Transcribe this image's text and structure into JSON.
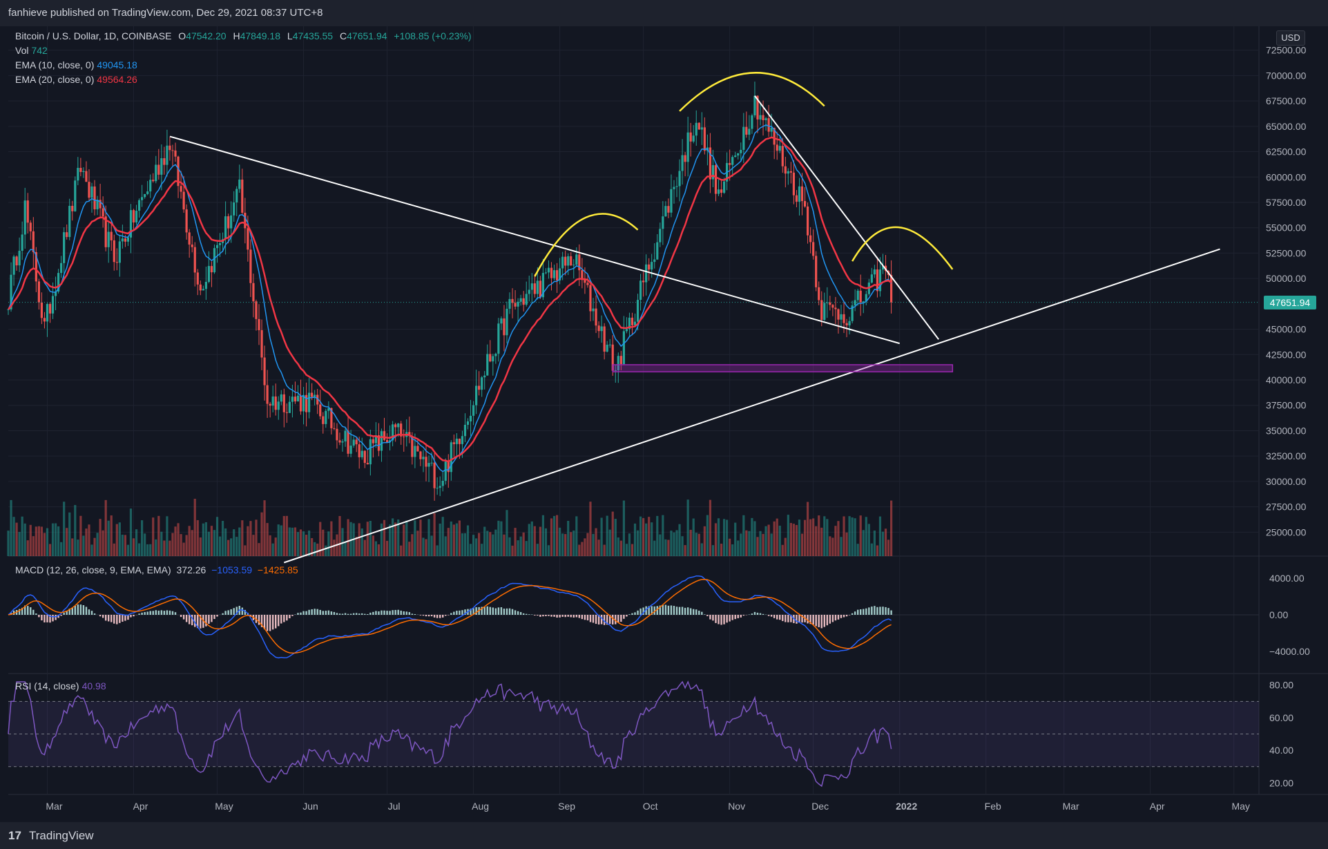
{
  "header": {
    "publisher_line": "fanhieve published on TradingView.com, Dec 29, 2021 08:37 UTC+8"
  },
  "footer": {
    "brand": "TradingView",
    "logo_glyph": "17"
  },
  "legend": {
    "symbol": "Bitcoin / U.S. Dollar, 1D, COINBASE",
    "ohlc": {
      "O": "47542.20",
      "H": "47849.18",
      "L": "47435.55",
      "C": "47651.94",
      "change": "+108.85 (+0.23%)"
    },
    "labels": {
      "O": "O",
      "H": "H",
      "L": "L",
      "C": "C"
    },
    "vol": {
      "label": "Vol",
      "value": "742"
    },
    "ema10": {
      "label": "EMA (10, close, 0)",
      "value": "49045.18"
    },
    "ema20": {
      "label": "EMA (20, close, 0)",
      "value": "49564.26"
    },
    "macd": {
      "label": "MACD (12, 26, close, 9, EMA, EMA)",
      "hist": "372.26",
      "macd": "−1053.59",
      "signal": "−1425.85"
    },
    "rsi": {
      "label": "RSI (14, close)",
      "value": "40.98"
    }
  },
  "price_axis": {
    "currency": "USD",
    "last_price": "47651.94",
    "ticks": [
      "72500.00",
      "70000.00",
      "67500.00",
      "65000.00",
      "62500.00",
      "60000.00",
      "57500.00",
      "55000.00",
      "52500.00",
      "50000.00",
      "45000.00",
      "42500.00",
      "40000.00",
      "37500.00",
      "35000.00",
      "32500.00",
      "30000.00",
      "27500.00",
      "25000.00"
    ]
  },
  "macd_axis": {
    "ticks": [
      "4000.00",
      "0.00",
      "−4000.00"
    ]
  },
  "rsi_axis": {
    "ticks": [
      "80.00",
      "60.00",
      "40.00",
      "20.00"
    ]
  },
  "time_axis": {
    "ticks": [
      "Mar",
      "Apr",
      "May",
      "Jun",
      "Jul",
      "Aug",
      "Sep",
      "Oct",
      "Nov",
      "Dec",
      "2022",
      "Feb",
      "Mar",
      "Apr",
      "May"
    ]
  },
  "colors": {
    "up": "#26a69a",
    "down": "#ef5350",
    "ema10": "#2196f3",
    "ema20": "#f23645",
    "macd": "#2962ff",
    "signal": "#ff6d00",
    "rsi": "#7e57c2",
    "trendline": "#ffffff",
    "arc": "#ffeb3b",
    "zone": "#9c27b0"
  },
  "chart_data": {
    "type": "candlestick",
    "title": "Bitcoin / U.S. Dollar, 1D, COINBASE",
    "price_range": [
      24000,
      73500
    ],
    "last_close": 47651.94,
    "approx_close_path": [
      [
        "2021-02-15",
        48000
      ],
      [
        "2021-02-21",
        57000
      ],
      [
        "2021-02-28",
        45000
      ],
      [
        "2021-03-13",
        61000
      ],
      [
        "2021-03-25",
        52000
      ],
      [
        "2021-04-14",
        63500
      ],
      [
        "2021-04-25",
        49000
      ],
      [
        "2021-05-09",
        58500
      ],
      [
        "2021-05-19",
        38000
      ],
      [
        "2021-06-03",
        38000
      ],
      [
        "2021-06-22",
        32500
      ],
      [
        "2021-07-04",
        35000
      ],
      [
        "2021-07-20",
        30000
      ],
      [
        "2021-08-14",
        47000
      ],
      [
        "2021-09-06",
        52000
      ],
      [
        "2021-09-21",
        41000
      ],
      [
        "2021-10-20",
        66000
      ],
      [
        "2021-10-28",
        58000
      ],
      [
        "2021-11-10",
        67500
      ],
      [
        "2021-11-28",
        57000
      ],
      [
        "2021-12-04",
        47000
      ],
      [
        "2021-12-14",
        46500
      ],
      [
        "2021-12-27",
        51000
      ],
      [
        "2021-12-29",
        47651.94
      ]
    ],
    "indicators": {
      "ema10_last": 49045.18,
      "ema20_last": 49564.26,
      "macd_range": [
        -5500,
        5500
      ],
      "rsi_range": [
        18,
        82
      ],
      "rsi_band": [
        30,
        70
      ],
      "rsi_last": 40.98
    },
    "annotations": {
      "trendlines": [
        {
          "from": [
            "2021-04-14",
            64000
          ],
          "to": [
            "2022-01-01",
            43600
          ]
        },
        {
          "from": [
            "2021-05-25",
            22000
          ],
          "to": [
            "2022-04-26",
            52900
          ]
        },
        {
          "from": [
            "2021-11-10",
            68000
          ],
          "to": [
            "2022-01-15",
            44000
          ]
        }
      ],
      "support_zone": {
        "from": "2021-09-20",
        "to": "2022-01-20",
        "price": [
          40800,
          41500
        ]
      }
    }
  }
}
